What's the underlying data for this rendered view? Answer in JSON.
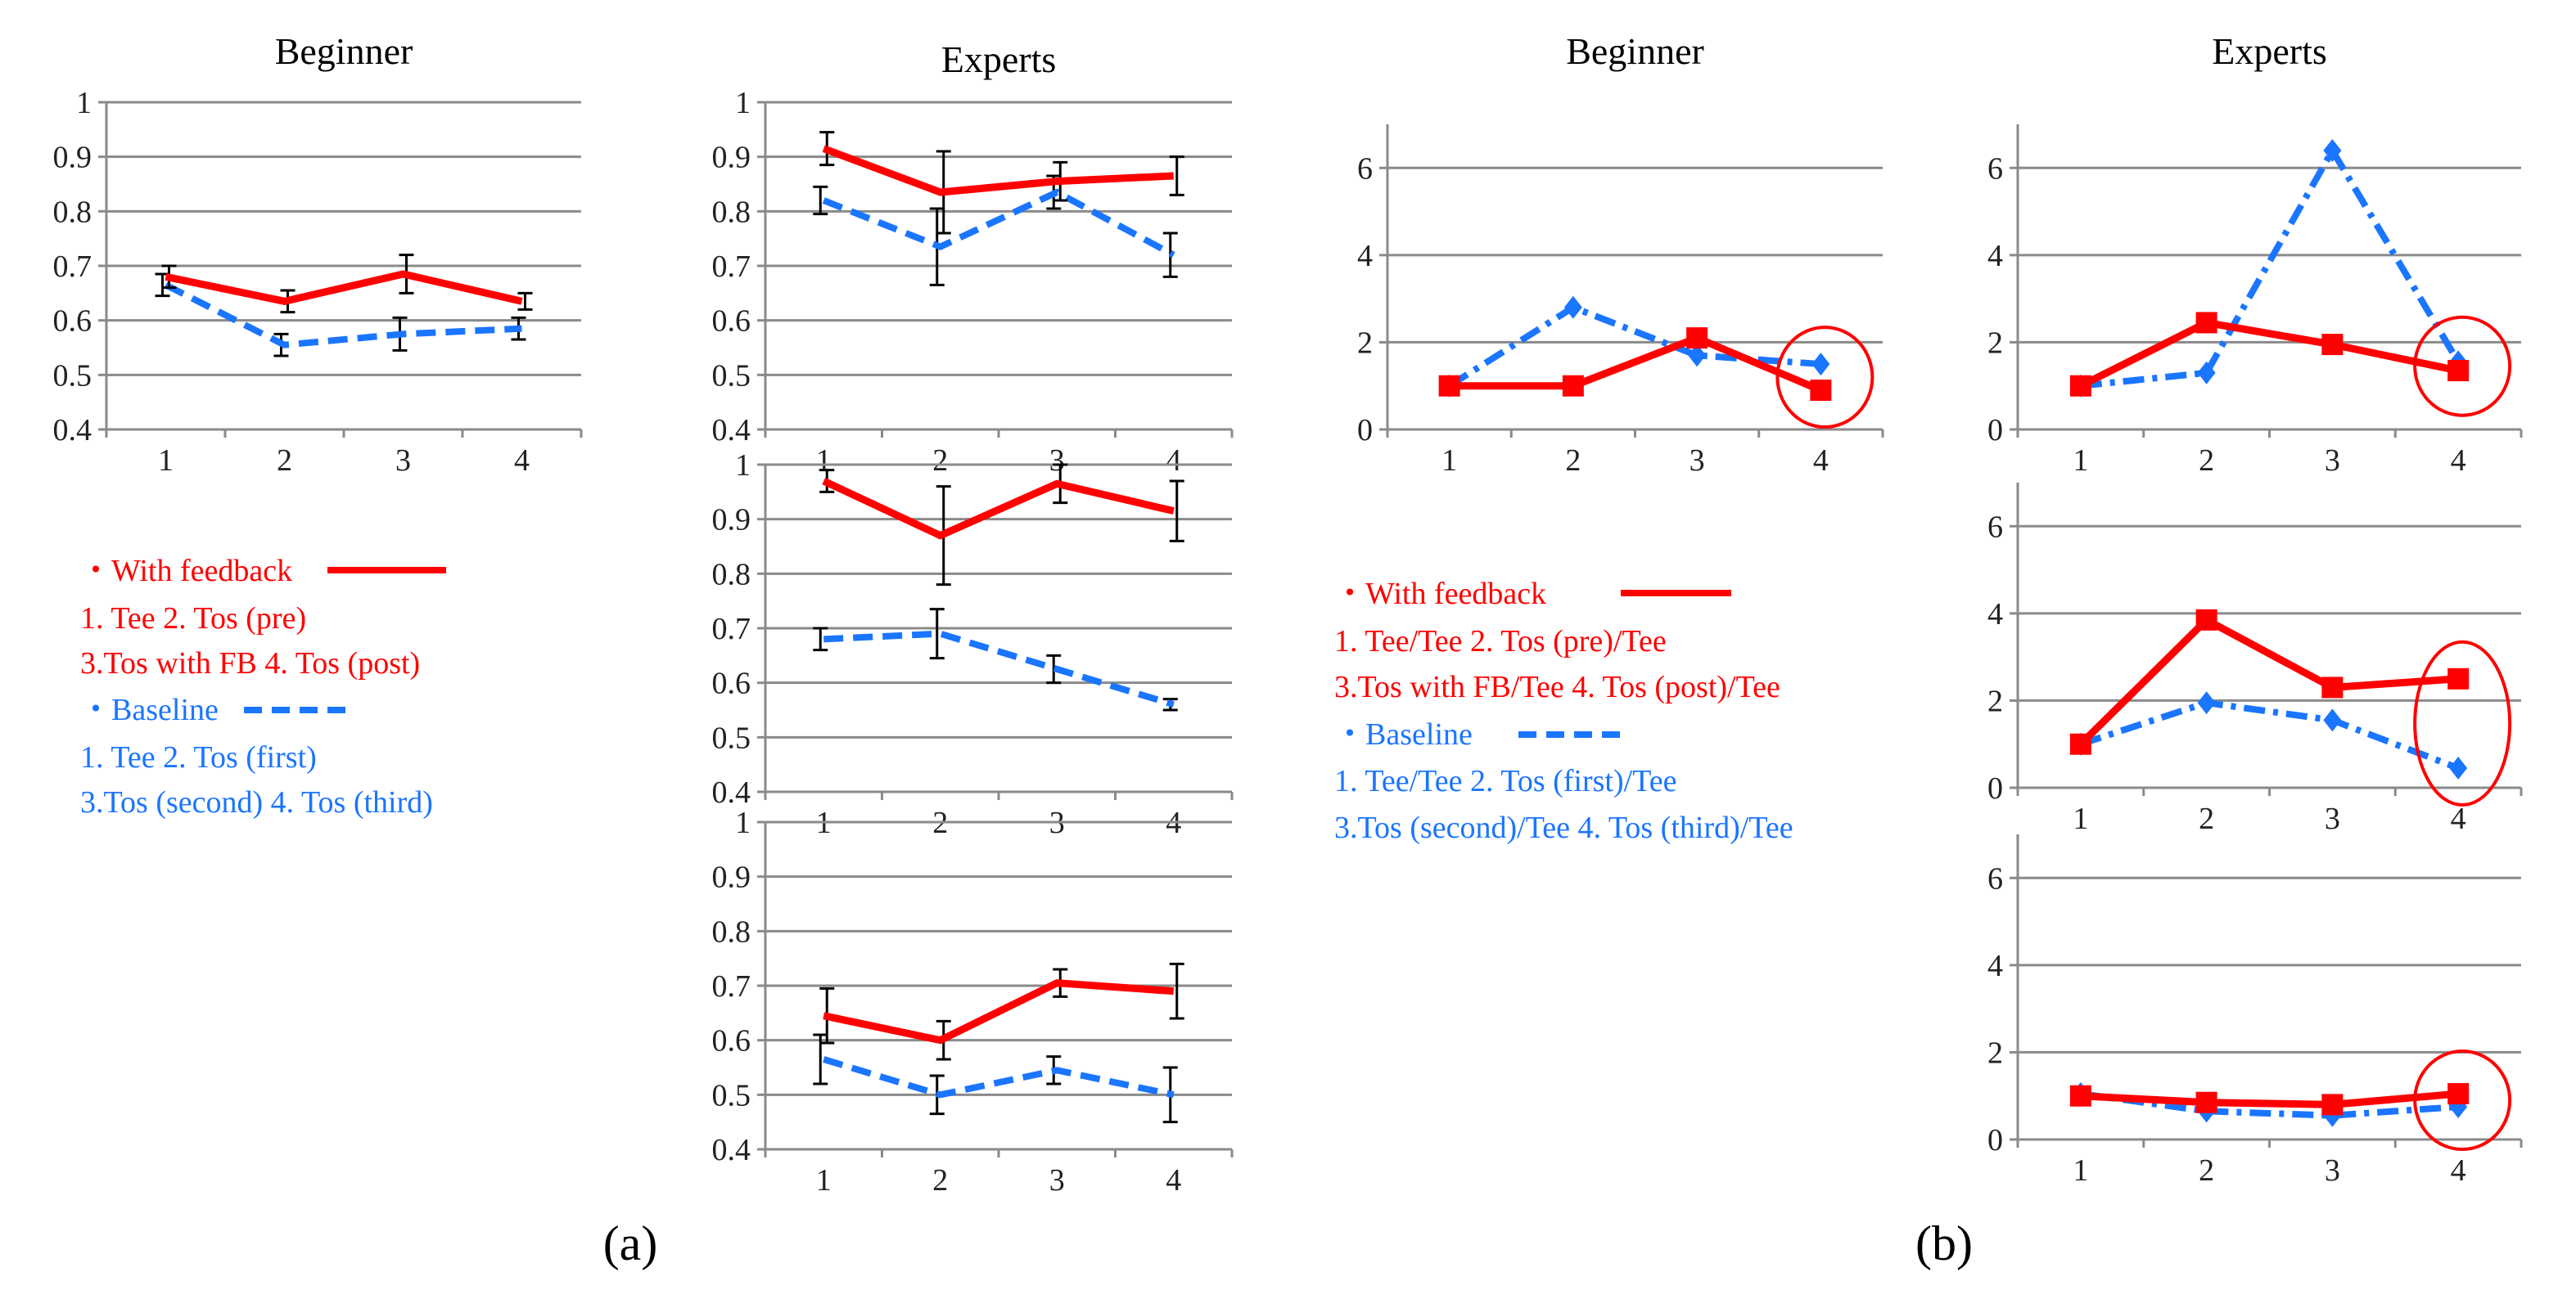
{
  "figure": {
    "panel_labels": {
      "a": "(a)",
      "b": "(b)"
    },
    "colors": {
      "feedback": "#ff0000",
      "baseline": "#1a75ff",
      "error_bar": "#000000",
      "circle": "#ff0000"
    }
  },
  "legend_a": {
    "bullet": "・",
    "feedback": "With feedback",
    "feedback_items_1": "1. Tee 2. Tos (pre)",
    "feedback_items_2": "3.Tos with FB 4. Tos (post)",
    "baseline": "Baseline",
    "baseline_items_1": "1. Tee 2. Tos (first)",
    "baseline_items_2": "3.Tos (second) 4. Tos (third)"
  },
  "legend_b": {
    "bullet": "・",
    "feedback": "With feedback",
    "feedback_items_1": "1. Tee/Tee 2. Tos (pre)/Tee",
    "feedback_items_2": "3.Tos with FB/Tee 4. Tos (post)/Tee",
    "baseline": "Baseline",
    "baseline_items_1": "1. Tee/Tee 2. Tos (first)/Tee",
    "baseline_items_2": "3.Tos (second)/Tee 4. Tos (third)/Tee"
  },
  "chart_data": [
    {
      "id": "a-beginner",
      "type": "line",
      "title": "Beginner",
      "categories": [
        "1",
        "2",
        "3",
        "4"
      ],
      "ylim": [
        0.4,
        1
      ],
      "yticks": [
        "0.4",
        "0.5",
        "0.6",
        "0.7",
        "0.8",
        "0.9",
        "1"
      ],
      "series": [
        {
          "name": "With feedback",
          "values": [
            0.68,
            0.635,
            0.685,
            0.635
          ],
          "errors": [
            0.02,
            0.02,
            0.035,
            0.015
          ]
        },
        {
          "name": "Baseline",
          "values": [
            0.665,
            0.555,
            0.575,
            0.585
          ],
          "errors": [
            0.02,
            0.02,
            0.03,
            0.02
          ]
        }
      ]
    },
    {
      "id": "a-experts-1",
      "type": "line",
      "title": "Experts",
      "categories": [
        "1",
        "2",
        "3",
        "4"
      ],
      "ylim": [
        0.4,
        1
      ],
      "yticks": [
        "0.4",
        "0.5",
        "0.6",
        "0.7",
        "0.8",
        "0.9",
        "1"
      ],
      "series": [
        {
          "name": "With feedback",
          "values": [
            0.915,
            0.835,
            0.855,
            0.865
          ],
          "errors": [
            0.03,
            0.075,
            0.035,
            0.035
          ]
        },
        {
          "name": "Baseline",
          "values": [
            0.82,
            0.735,
            0.835,
            0.72
          ],
          "errors": [
            0.025,
            0.07,
            0.03,
            0.04
          ]
        }
      ]
    },
    {
      "id": "a-experts-2",
      "type": "line",
      "title": "",
      "categories": [
        "1",
        "2",
        "3",
        "4"
      ],
      "ylim": [
        0.4,
        1
      ],
      "yticks": [
        "0.4",
        "0.5",
        "0.6",
        "0.7",
        "0.8",
        "0.9",
        "1"
      ],
      "series": [
        {
          "name": "With feedback",
          "values": [
            0.97,
            0.87,
            0.965,
            0.915
          ],
          "errors": [
            0.02,
            0.09,
            0.035,
            0.055
          ]
        },
        {
          "name": "Baseline",
          "values": [
            0.68,
            0.69,
            0.625,
            0.56
          ],
          "errors": [
            0.02,
            0.045,
            0.025,
            0.01
          ]
        }
      ]
    },
    {
      "id": "a-experts-3",
      "type": "line",
      "title": "",
      "categories": [
        "1",
        "2",
        "3",
        "4"
      ],
      "ylim": [
        0.4,
        1
      ],
      "yticks": [
        "0.4",
        "0.5",
        "0.6",
        "0.7",
        "0.8",
        "0.9",
        "1"
      ],
      "series": [
        {
          "name": "With feedback",
          "values": [
            0.645,
            0.6,
            0.705,
            0.69
          ],
          "errors": [
            0.05,
            0.035,
            0.025,
            0.05
          ]
        },
        {
          "name": "Baseline",
          "values": [
            0.565,
            0.5,
            0.545,
            0.5
          ],
          "errors": [
            0.045,
            0.035,
            0.025,
            0.05
          ]
        }
      ]
    },
    {
      "id": "b-beginner",
      "type": "line",
      "title": "Beginner",
      "categories": [
        "1",
        "2",
        "3",
        "4"
      ],
      "ylim": [
        0,
        7
      ],
      "yticks": [
        "0",
        "2",
        "4",
        "6"
      ],
      "highlight_point": 4,
      "series": [
        {
          "name": "With feedback",
          "values": [
            1.0,
            1.0,
            2.1,
            0.9
          ]
        },
        {
          "name": "Baseline",
          "values": [
            1.0,
            2.8,
            1.7,
            1.5
          ]
        }
      ]
    },
    {
      "id": "b-experts-1",
      "type": "line",
      "title": "Experts",
      "categories": [
        "1",
        "2",
        "3",
        "4"
      ],
      "ylim": [
        0,
        7
      ],
      "yticks": [
        "0",
        "2",
        "4",
        "6"
      ],
      "highlight_point": 4,
      "series": [
        {
          "name": "With feedback",
          "values": [
            1.0,
            2.45,
            1.95,
            1.35
          ]
        },
        {
          "name": "Baseline",
          "values": [
            1.0,
            1.3,
            6.4,
            1.55
          ]
        }
      ]
    },
    {
      "id": "b-experts-2",
      "type": "line",
      "title": "",
      "categories": [
        "1",
        "2",
        "3",
        "4"
      ],
      "ylim": [
        0,
        7
      ],
      "yticks": [
        "0",
        "2",
        "4",
        "6"
      ],
      "highlight_point": 4,
      "series": [
        {
          "name": "With feedback",
          "values": [
            1.0,
            3.85,
            2.3,
            2.5
          ]
        },
        {
          "name": "Baseline",
          "values": [
            1.0,
            1.95,
            1.55,
            0.45
          ]
        }
      ]
    },
    {
      "id": "b-experts-3",
      "type": "line",
      "title": "",
      "categories": [
        "1",
        "2",
        "3",
        "4"
      ],
      "ylim": [
        0,
        7
      ],
      "yticks": [
        "0",
        "2",
        "4",
        "6"
      ],
      "highlight_point": 4,
      "series": [
        {
          "name": "With feedback",
          "values": [
            1.0,
            0.85,
            0.8,
            1.05
          ]
        },
        {
          "name": "Baseline",
          "values": [
            1.05,
            0.65,
            0.55,
            0.75
          ]
        }
      ]
    }
  ]
}
